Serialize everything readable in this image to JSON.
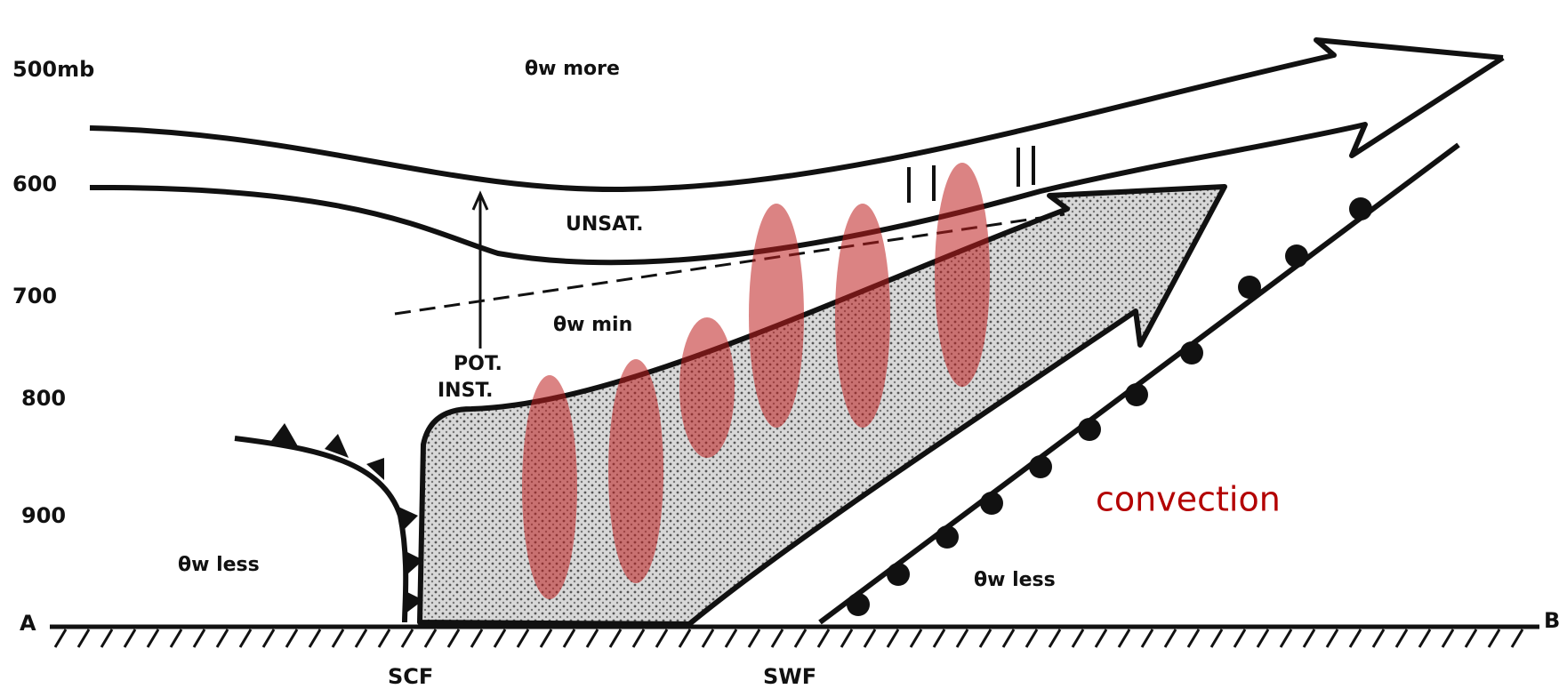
{
  "pressure_levels": [
    "500mb",
    "600",
    "700",
    "800",
    "900"
  ],
  "labels": {
    "theta_more": "θw more",
    "unsat": "UNSAT.",
    "theta_min": "θw min",
    "pot": "POT.",
    "inst": "INST.",
    "theta_less_left": "θw less",
    "theta_less_right": "θw less",
    "a": "A",
    "b": "B",
    "scf": "SCF",
    "swf": "SWF"
  },
  "annotation": "convection"
}
